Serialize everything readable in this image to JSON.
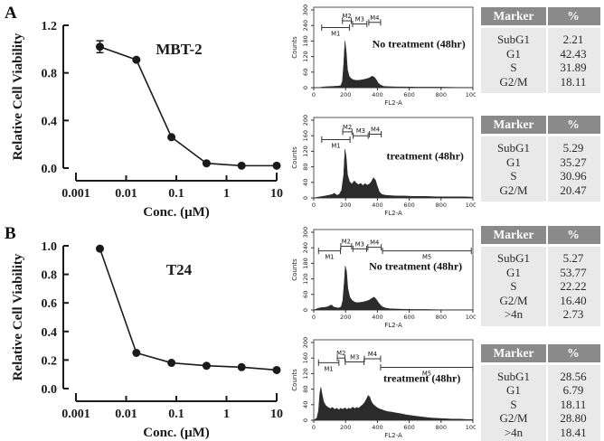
{
  "labels": {
    "panel_a": "A",
    "panel_b": "B"
  },
  "colors": {
    "ink": "#1a1a1a",
    "hist_fill": "#2b2b2b",
    "table_header_bg": "#8a8a8a",
    "table_header_text": "#ffffff",
    "table_body_bg": "#e9e9e9"
  },
  "chart_data": [
    {
      "id": "viability-mbt2",
      "panel": "A",
      "type": "line",
      "title": "MBT-2",
      "xlabel": "Conc. (μM)",
      "ylabel": "Relative Cell Viability",
      "xscale": "log",
      "xticks": [
        0.001,
        0.01,
        0.1,
        1,
        10
      ],
      "xtick_labels": [
        "0.001",
        "0.01",
        "0.1",
        "1",
        "10"
      ],
      "ylim": [
        0,
        1.2
      ],
      "yticks": [
        0,
        0.4,
        0.8,
        1.2
      ],
      "ytick_labels": [
        "0.0",
        "0.4",
        "0.8",
        "1.2"
      ],
      "x": [
        0.003,
        0.016,
        0.08,
        0.4,
        2,
        10
      ],
      "y": [
        1.02,
        0.91,
        0.26,
        0.04,
        0.02,
        0.02
      ],
      "yerr": [
        0.05,
        0,
        0,
        0,
        0,
        0
      ]
    },
    {
      "id": "viability-t24",
      "panel": "B",
      "type": "line",
      "title": "T24",
      "xlabel": "Conc. (μM)",
      "ylabel": "Relative Cell Viability",
      "xscale": "log",
      "xticks": [
        0.001,
        0.01,
        0.1,
        1,
        10
      ],
      "xtick_labels": [
        "0.001",
        "0.01",
        "0.1",
        "1",
        "10"
      ],
      "ylim": [
        0,
        1.0
      ],
      "yticks": [
        0,
        0.2,
        0.4,
        0.6,
        0.8,
        1.0
      ],
      "ytick_labels": [
        "0.0",
        "0.2",
        "0.4",
        "0.6",
        "0.8",
        "1.0"
      ],
      "x": [
        0.003,
        0.016,
        0.08,
        0.4,
        2,
        10
      ],
      "y": [
        0.98,
        0.25,
        0.18,
        0.16,
        0.15,
        0.13
      ],
      "yerr": [
        0,
        0,
        0,
        0,
        0,
        0
      ]
    },
    {
      "id": "flow-a-untreated",
      "panel": "A",
      "type": "area",
      "annotation": "No treatment (48hr)",
      "ann_x": 0.66,
      "ann_y": 0.5,
      "xlabel": "FL2-A",
      "ylabel": "Counts",
      "xlim": [
        0,
        1000
      ],
      "xticks": [
        0,
        200,
        400,
        600,
        800,
        1000
      ],
      "ylim": [
        0,
        300
      ],
      "yticks": [
        0,
        60,
        120,
        180,
        240,
        300
      ],
      "markers": [
        {
          "name": "M1",
          "from": 50,
          "to": 225,
          "y": 232,
          "label": "below"
        },
        {
          "name": "M2",
          "from": 180,
          "to": 236,
          "y": 258,
          "label": "above"
        },
        {
          "name": "M3",
          "from": 244,
          "to": 334,
          "y": 246,
          "label": "above"
        },
        {
          "name": "M4",
          "from": 346,
          "to": 420,
          "y": 252,
          "label": "above"
        }
      ],
      "profile": [
        [
          0,
          0
        ],
        [
          40,
          1
        ],
        [
          60,
          3
        ],
        [
          90,
          4
        ],
        [
          120,
          5
        ],
        [
          150,
          6
        ],
        [
          170,
          8
        ],
        [
          180,
          25
        ],
        [
          188,
          90
        ],
        [
          196,
          180
        ],
        [
          204,
          140
        ],
        [
          212,
          70
        ],
        [
          222,
          45
        ],
        [
          235,
          35
        ],
        [
          250,
          30
        ],
        [
          270,
          28
        ],
        [
          290,
          29
        ],
        [
          310,
          31
        ],
        [
          330,
          34
        ],
        [
          350,
          38
        ],
        [
          365,
          44
        ],
        [
          378,
          42
        ],
        [
          392,
          32
        ],
        [
          405,
          18
        ],
        [
          420,
          10
        ],
        [
          440,
          5
        ],
        [
          470,
          4
        ],
        [
          520,
          3
        ],
        [
          580,
          3
        ],
        [
          650,
          2
        ],
        [
          720,
          2
        ],
        [
          800,
          2
        ],
        [
          900,
          1
        ],
        [
          1000,
          1
        ]
      ]
    },
    {
      "id": "flow-a-treated",
      "panel": "A",
      "type": "area",
      "annotation": "treatment (48hr)",
      "ann_x": 0.7,
      "ann_y": 0.52,
      "xlabel": "FL2-A",
      "ylabel": "Counts",
      "xlim": [
        0,
        1000
      ],
      "xticks": [
        0,
        200,
        400,
        600,
        800,
        1000
      ],
      "ylim": [
        0,
        200
      ],
      "yticks": [
        0,
        40,
        80,
        120,
        160,
        200
      ],
      "markers": [
        {
          "name": "M1",
          "from": 50,
          "to": 228,
          "y": 150,
          "label": "below"
        },
        {
          "name": "M2",
          "from": 182,
          "to": 240,
          "y": 170,
          "label": "above"
        },
        {
          "name": "M3",
          "from": 248,
          "to": 342,
          "y": 160,
          "label": "above"
        },
        {
          "name": "M4",
          "from": 350,
          "to": 424,
          "y": 164,
          "label": "above"
        }
      ],
      "profile": [
        [
          0,
          0
        ],
        [
          40,
          3
        ],
        [
          70,
          5
        ],
        [
          95,
          7
        ],
        [
          115,
          9
        ],
        [
          130,
          12
        ],
        [
          145,
          7
        ],
        [
          160,
          9
        ],
        [
          175,
          20
        ],
        [
          188,
          60
        ],
        [
          196,
          125
        ],
        [
          204,
          105
        ],
        [
          212,
          60
        ],
        [
          225,
          42
        ],
        [
          240,
          36
        ],
        [
          255,
          44
        ],
        [
          268,
          38
        ],
        [
          282,
          34
        ],
        [
          295,
          38
        ],
        [
          308,
          32
        ],
        [
          322,
          37
        ],
        [
          336,
          33
        ],
        [
          350,
          36
        ],
        [
          362,
          42
        ],
        [
          375,
          52
        ],
        [
          388,
          46
        ],
        [
          398,
          32
        ],
        [
          412,
          16
        ],
        [
          428,
          9
        ],
        [
          450,
          7
        ],
        [
          480,
          6
        ],
        [
          520,
          5
        ],
        [
          570,
          5
        ],
        [
          630,
          4
        ],
        [
          700,
          4
        ],
        [
          780,
          3
        ],
        [
          860,
          3
        ],
        [
          940,
          3
        ],
        [
          1000,
          2
        ]
      ]
    },
    {
      "id": "flow-b-untreated",
      "panel": "B",
      "type": "area",
      "annotation": "No treatment (48hr)",
      "ann_x": 0.64,
      "ann_y": 0.5,
      "xlabel": "FL2-A",
      "ylabel": "Counts",
      "xlim": [
        0,
        1000
      ],
      "xticks": [
        0,
        200,
        400,
        600,
        800,
        1000
      ],
      "ylim": [
        0,
        300
      ],
      "yticks": [
        0,
        60,
        120,
        180,
        240,
        300
      ],
      "markers": [
        {
          "name": "M1",
          "from": 30,
          "to": 168,
          "y": 228,
          "label": "below"
        },
        {
          "name": "M2",
          "from": 170,
          "to": 238,
          "y": 246,
          "label": "above"
        },
        {
          "name": "M3",
          "from": 246,
          "to": 332,
          "y": 236,
          "label": "above"
        },
        {
          "name": "M4",
          "from": 340,
          "to": 424,
          "y": 242,
          "label": "above"
        },
        {
          "name": "M5",
          "from": 432,
          "to": 990,
          "y": 228,
          "label": "below"
        }
      ],
      "profile": [
        [
          0,
          0
        ],
        [
          25,
          6
        ],
        [
          45,
          9
        ],
        [
          65,
          10
        ],
        [
          85,
          12
        ],
        [
          100,
          16
        ],
        [
          112,
          20
        ],
        [
          122,
          13
        ],
        [
          140,
          9
        ],
        [
          158,
          8
        ],
        [
          172,
          12
        ],
        [
          182,
          35
        ],
        [
          192,
          110
        ],
        [
          198,
          170
        ],
        [
          206,
          150
        ],
        [
          214,
          85
        ],
        [
          226,
          50
        ],
        [
          240,
          38
        ],
        [
          255,
          31
        ],
        [
          272,
          28
        ],
        [
          290,
          29
        ],
        [
          310,
          31
        ],
        [
          330,
          34
        ],
        [
          348,
          38
        ],
        [
          365,
          45
        ],
        [
          380,
          50
        ],
        [
          392,
          42
        ],
        [
          405,
          30
        ],
        [
          418,
          20
        ],
        [
          432,
          12
        ],
        [
          450,
          8
        ],
        [
          475,
          5
        ],
        [
          510,
          4
        ],
        [
          560,
          3
        ],
        [
          620,
          2
        ],
        [
          700,
          2
        ],
        [
          800,
          1
        ],
        [
          900,
          1
        ],
        [
          1000,
          1
        ]
      ]
    },
    {
      "id": "flow-b-treated",
      "panel": "B",
      "type": "area",
      "annotation": "treatment (48hr)",
      "ann_x": 0.68,
      "ann_y": 0.52,
      "xlabel": "FL2-A",
      "ylabel": "Counts",
      "xlim": [
        0,
        1000
      ],
      "xticks": [
        0,
        200,
        400,
        600,
        800,
        1000
      ],
      "ylim": [
        0,
        200
      ],
      "yticks": [
        0,
        40,
        80,
        120,
        160,
        200
      ],
      "markers": [
        {
          "name": "M1",
          "from": 30,
          "to": 158,
          "y": 148,
          "label": "below"
        },
        {
          "name": "M2",
          "from": 148,
          "to": 196,
          "y": 160,
          "label": "above"
        },
        {
          "name": "M3",
          "from": 198,
          "to": 316,
          "y": 150,
          "label": "above"
        },
        {
          "name": "M4",
          "from": 318,
          "to": 420,
          "y": 158,
          "label": "above"
        },
        {
          "name": "M5",
          "from": 420,
          "to": 1000,
          "y": 136,
          "label": "below"
        }
      ],
      "profile": [
        [
          0,
          0
        ],
        [
          20,
          6
        ],
        [
          30,
          25
        ],
        [
          38,
          70
        ],
        [
          45,
          85
        ],
        [
          52,
          68
        ],
        [
          62,
          48
        ],
        [
          75,
          38
        ],
        [
          90,
          33
        ],
        [
          105,
          30
        ],
        [
          118,
          33
        ],
        [
          132,
          28
        ],
        [
          145,
          31
        ],
        [
          158,
          27
        ],
        [
          170,
          31
        ],
        [
          182,
          28
        ],
        [
          195,
          32
        ],
        [
          208,
          28
        ],
        [
          220,
          31
        ],
        [
          232,
          29
        ],
        [
          245,
          34
        ],
        [
          258,
          30
        ],
        [
          270,
          33
        ],
        [
          282,
          31
        ],
        [
          295,
          36
        ],
        [
          308,
          40
        ],
        [
          320,
          46
        ],
        [
          332,
          55
        ],
        [
          342,
          64
        ],
        [
          352,
          60
        ],
        [
          362,
          48
        ],
        [
          375,
          40
        ],
        [
          388,
          36
        ],
        [
          400,
          32
        ],
        [
          415,
          29
        ],
        [
          430,
          27
        ],
        [
          448,
          24
        ],
        [
          468,
          22
        ],
        [
          490,
          21
        ],
        [
          515,
          19
        ],
        [
          545,
          17
        ],
        [
          580,
          14
        ],
        [
          615,
          12
        ],
        [
          650,
          10
        ],
        [
          690,
          8
        ],
        [
          730,
          6
        ],
        [
          775,
          5
        ],
        [
          820,
          4
        ],
        [
          870,
          3
        ],
        [
          920,
          3
        ],
        [
          960,
          2
        ],
        [
          1000,
          2
        ]
      ]
    },
    {
      "id": "table-a-untreated",
      "panel": "A",
      "type": "table",
      "columns": [
        "Marker",
        "%"
      ],
      "rows": [
        [
          "SubG1",
          "2.21"
        ],
        [
          "G1",
          "42.43"
        ],
        [
          "S",
          "31.89"
        ],
        [
          "G2/M",
          "18.11"
        ]
      ]
    },
    {
      "id": "table-a-treated",
      "panel": "A",
      "type": "table",
      "columns": [
        "Marker",
        "%"
      ],
      "rows": [
        [
          "SubG1",
          "5.29"
        ],
        [
          "G1",
          "35.27"
        ],
        [
          "S",
          "30.96"
        ],
        [
          "G2/M",
          "20.47"
        ]
      ]
    },
    {
      "id": "table-b-untreated",
      "panel": "B",
      "type": "table",
      "columns": [
        "Marker",
        "%"
      ],
      "rows": [
        [
          "SubG1",
          "5.27"
        ],
        [
          "G1",
          "53.77"
        ],
        [
          "S",
          "22.22"
        ],
        [
          "G2/M",
          "16.40"
        ],
        [
          ">4n",
          "2.73"
        ]
      ]
    },
    {
      "id": "table-b-treated",
      "panel": "B",
      "type": "table",
      "columns": [
        "Marker",
        "%"
      ],
      "rows": [
        [
          "SubG1",
          "28.56"
        ],
        [
          "G1",
          "6.79"
        ],
        [
          "S",
          "18.11"
        ],
        [
          "G2/M",
          "28.80"
        ],
        [
          ">4n",
          "18.41"
        ]
      ]
    }
  ]
}
